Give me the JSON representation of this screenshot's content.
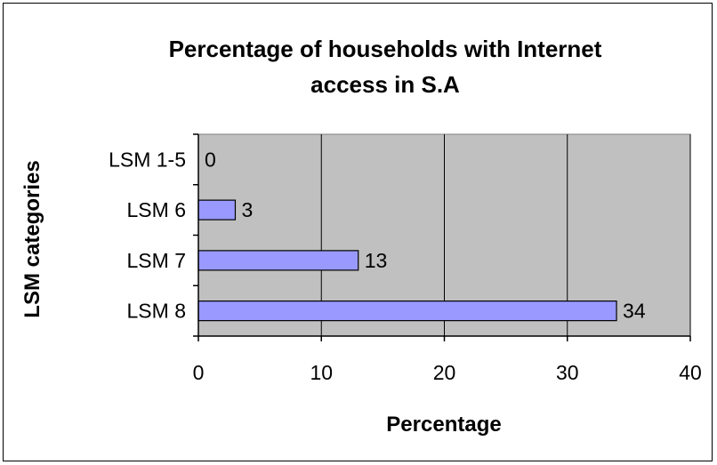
{
  "chart_data": {
    "type": "bar",
    "orientation": "horizontal",
    "title_lines": [
      "Percentage of households with Internet",
      "access in S.A"
    ],
    "xlabel": "Percentage",
    "ylabel": "LSM categories",
    "categories": [
      "LSM 1-5",
      "LSM 6",
      "LSM 7",
      "LSM 8"
    ],
    "values": [
      0,
      3,
      13,
      34
    ],
    "data_labels": [
      "0",
      "3",
      "13",
      "34"
    ],
    "xlim": [
      0,
      40
    ],
    "x_ticks": [
      "0",
      "10",
      "20",
      "30",
      "40"
    ],
    "grid": "vertical major gridlines",
    "legend": "none",
    "colors": {
      "plot_area": "#c0c0c0",
      "bar_fill": "#9999ff",
      "bar_edge": "#000000",
      "gridline": "#000000"
    }
  }
}
